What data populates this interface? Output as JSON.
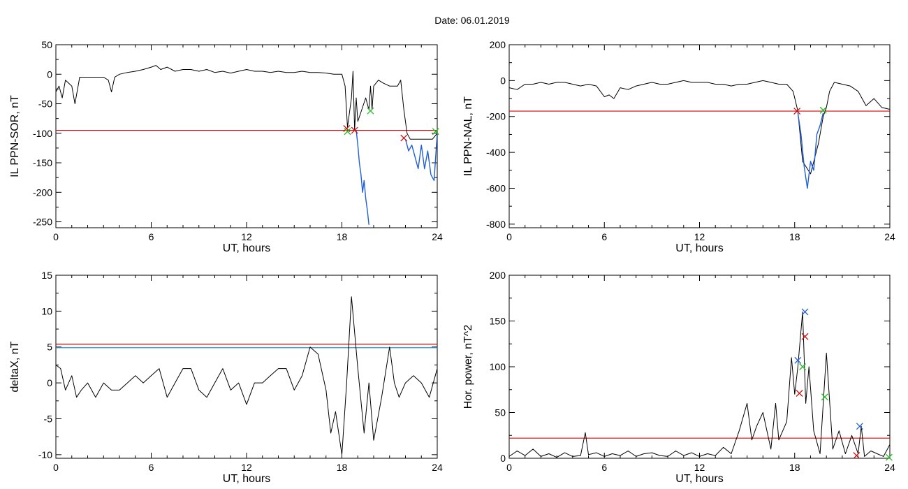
{
  "title": "Date:  06.01.2019",
  "colors": {
    "trace": "#000000",
    "threshold": "#e00000",
    "segment": "#1f5fd6",
    "cross_red": "#cc1111",
    "cross_green": "#22bb22",
    "cross_blue": "#1f5fd6",
    "threshold2": "#1f8fd6"
  },
  "chart_data": [
    {
      "id": "sor",
      "type": "line",
      "xlabel": "UT, hours",
      "ylabel": "IL PPN-SOR, nT",
      "xlim": [
        0,
        24
      ],
      "ylim": [
        -260,
        50
      ],
      "xticks": [
        0,
        6,
        12,
        18,
        24
      ],
      "yticks": [
        50,
        0,
        -50,
        -100,
        -150,
        -200,
        -250
      ],
      "xticklabels": [
        "0",
        "6",
        "12",
        "18",
        "24"
      ],
      "yticklabels": [
        "50",
        "0",
        "-50",
        "-100",
        "-150",
        "-200",
        "-250"
      ],
      "threshold": -95,
      "series": [
        {
          "style": "trace",
          "x": [
            0,
            0.2,
            0.4,
            0.6,
            1.0,
            1.2,
            1.5,
            2,
            2.5,
            3,
            3.3,
            3.5,
            3.7,
            4,
            4.5,
            5,
            5.5,
            6,
            6.3,
            6.6,
            7,
            7.5,
            8,
            8.5,
            9,
            9.5,
            10,
            10.5,
            11,
            11.5,
            12,
            12.5,
            13,
            13.5,
            14,
            14.5,
            15,
            15.5,
            16,
            16.5,
            17,
            17.5,
            18,
            18.2,
            18.35,
            18.5,
            18.6,
            18.7,
            18.8,
            18.9,
            19.0,
            19.5,
            19.7,
            19.8,
            19.9,
            20.0,
            20.3,
            20.6,
            21,
            21.5,
            21.7,
            21.9,
            22.0,
            22.1,
            22.3,
            22.6,
            23,
            23.4,
            23.7,
            24
          ],
          "y": [
            -30,
            -20,
            -40,
            -10,
            -20,
            -50,
            -5,
            -5,
            -5,
            -5,
            -10,
            -30,
            -5,
            0,
            3,
            5,
            8,
            12,
            15,
            8,
            12,
            5,
            8,
            8,
            5,
            8,
            3,
            5,
            2,
            5,
            8,
            5,
            5,
            3,
            5,
            3,
            3,
            5,
            3,
            3,
            2,
            0,
            0,
            -20,
            -90,
            -60,
            -40,
            5,
            -95,
            -40,
            -80,
            -40,
            -60,
            -20,
            -60,
            -20,
            -10,
            -15,
            -20,
            -20,
            -10,
            -60,
            -80,
            -100,
            -110,
            -110,
            -110,
            -110,
            -110,
            -100
          ]
        },
        {
          "style": "segment",
          "x": [
            18.9,
            19.0,
            19.1,
            19.2,
            19.3,
            19.4,
            19.5,
            19.6,
            19.7
          ],
          "y": [
            -95,
            -120,
            -150,
            -170,
            -200,
            -180,
            -210,
            -230,
            -255
          ]
        },
        {
          "style": "segment",
          "x": [
            22.0,
            22.2,
            22.4,
            22.6,
            22.8,
            23.0,
            23.2,
            23.4,
            23.6,
            23.8,
            24
          ],
          "y": [
            -110,
            -130,
            -120,
            -140,
            -160,
            -120,
            -160,
            -130,
            -170,
            -180,
            -100
          ]
        }
      ],
      "markers": [
        {
          "x": 18.3,
          "y": -92,
          "color": "red"
        },
        {
          "x": 18.35,
          "y": -97,
          "color": "green"
        },
        {
          "x": 18.8,
          "y": -95,
          "color": "red"
        },
        {
          "x": 19.8,
          "y": -62,
          "color": "green"
        },
        {
          "x": 21.9,
          "y": -108,
          "color": "red"
        },
        {
          "x": 23.9,
          "y": -97,
          "color": "green"
        }
      ]
    },
    {
      "id": "nal",
      "type": "line",
      "xlabel": "UT, hours",
      "ylabel": "IL PPN-NAL, nT",
      "xlim": [
        0,
        24
      ],
      "ylim": [
        -820,
        200
      ],
      "xticks": [
        0,
        6,
        12,
        18,
        24
      ],
      "yticks": [
        200,
        0,
        -200,
        -400,
        -600,
        -800
      ],
      "xticklabels": [
        "0",
        "6",
        "12",
        "18",
        "24"
      ],
      "yticklabels": [
        "200",
        "0",
        "-200",
        "-400",
        "-600",
        "-800"
      ],
      "threshold": -170,
      "series": [
        {
          "style": "trace",
          "x": [
            0,
            0.5,
            1,
            1.5,
            2,
            2.5,
            3,
            3.5,
            4,
            4.5,
            5,
            5.5,
            6,
            6.3,
            6.6,
            7,
            7.5,
            8,
            8.5,
            9,
            9.5,
            10,
            10.5,
            11,
            11.5,
            12,
            12.5,
            13,
            13.5,
            14,
            14.5,
            15,
            15.5,
            16,
            16.5,
            17,
            17.5,
            17.9,
            18.2,
            18.5,
            19,
            19.5,
            19.8,
            20.0,
            20.2,
            20.5,
            21,
            21.5,
            22,
            22.5,
            23,
            23.5,
            24
          ],
          "y": [
            -40,
            -50,
            -20,
            -20,
            -10,
            -20,
            -10,
            -10,
            -20,
            -30,
            -20,
            -30,
            -90,
            -80,
            -100,
            -40,
            -50,
            -30,
            -20,
            -10,
            -20,
            -20,
            -10,
            0,
            -10,
            -10,
            -10,
            -20,
            -20,
            -30,
            -20,
            -20,
            -10,
            0,
            -10,
            -20,
            -20,
            -60,
            -170,
            -450,
            -520,
            -350,
            -200,
            -150,
            -60,
            -10,
            -20,
            -30,
            -60,
            -140,
            -100,
            -150,
            -160
          ]
        },
        {
          "style": "segment",
          "x": [
            18.2,
            18.4,
            18.6,
            18.8,
            19.0,
            19.2,
            19.4,
            19.6,
            19.8
          ],
          "y": [
            -180,
            -300,
            -480,
            -600,
            -450,
            -500,
            -300,
            -250,
            -180
          ]
        }
      ],
      "markers": [
        {
          "x": 18.15,
          "y": -170,
          "color": "red"
        },
        {
          "x": 19.8,
          "y": -165,
          "color": "green"
        }
      ]
    },
    {
      "id": "deltax",
      "type": "line",
      "xlabel": "UT, hours",
      "ylabel": "deltaX, nT",
      "xlim": [
        0,
        24
      ],
      "ylim": [
        -10.5,
        15
      ],
      "xticks": [
        0,
        6,
        12,
        18,
        24
      ],
      "yticks": [
        15,
        10,
        5,
        0,
        -5,
        -10
      ],
      "xticklabels": [
        "0",
        "6",
        "12",
        "18",
        "24"
      ],
      "yticklabels": [
        "15",
        "10",
        "5",
        "0",
        "-5",
        "-10"
      ],
      "threshold": 5.4,
      "threshold2": 4.9,
      "series": [
        {
          "style": "trace",
          "x": [
            0,
            0.3,
            0.6,
            1.0,
            1.3,
            1.6,
            2,
            2.5,
            3,
            3.5,
            4,
            4.5,
            5,
            5.5,
            6,
            6.5,
            7,
            7.5,
            8,
            8.5,
            9,
            9.5,
            10,
            10.5,
            11,
            11.5,
            12,
            12.5,
            13,
            13.5,
            14,
            14.5,
            15,
            15.5,
            16,
            16.5,
            17,
            17.3,
            17.6,
            18.0,
            18.3,
            18.6,
            19.0,
            19.4,
            19.7,
            20,
            20.5,
            21,
            21.3,
            21.6,
            22,
            22.5,
            23,
            23.5,
            24
          ],
          "y": [
            2.5,
            2,
            -1,
            1,
            -2,
            -1,
            0,
            -2,
            0,
            -1,
            -1,
            0,
            1,
            0,
            1,
            2,
            -2,
            0,
            2,
            2,
            -1,
            -2,
            0,
            2,
            -1,
            0,
            -3,
            0,
            0,
            1,
            2,
            2,
            -1,
            1,
            5,
            4,
            -1,
            -7,
            -4,
            -10,
            0,
            12,
            2,
            -7,
            0,
            -8,
            -2,
            5,
            0,
            -2,
            0,
            1,
            0,
            -2,
            2
          ]
        }
      ],
      "markers": []
    },
    {
      "id": "power",
      "type": "line",
      "xlabel": "UT, hours",
      "ylabel": "Hor. power, nT^2",
      "xlim": [
        0,
        24
      ],
      "ylim": [
        0,
        200
      ],
      "xticks": [
        0,
        6,
        12,
        18,
        24
      ],
      "yticks": [
        200,
        150,
        100,
        50,
        0
      ],
      "xticklabels": [
        "0",
        "6",
        "12",
        "18",
        "24"
      ],
      "yticklabels": [
        "200",
        "150",
        "100",
        "50",
        "0"
      ],
      "threshold": 22,
      "series": [
        {
          "style": "trace",
          "x": [
            0,
            0.5,
            1,
            1.5,
            2,
            2.5,
            3,
            3.5,
            4,
            4.5,
            4.8,
            5.0,
            5.5,
            6,
            6.5,
            7,
            7.5,
            8,
            8.5,
            9,
            9.5,
            10,
            10.5,
            11,
            11.5,
            12,
            12.5,
            13,
            13.5,
            14,
            14.5,
            15,
            15.3,
            15.6,
            16,
            16.5,
            16.8,
            17,
            17.5,
            17.8,
            18,
            18.2,
            18.5,
            18.7,
            18.9,
            19.2,
            19.6,
            20,
            20.4,
            20.8,
            21.2,
            21.6,
            22,
            22.2,
            22.4,
            22.8,
            23.2,
            23.6,
            24
          ],
          "y": [
            2,
            8,
            3,
            10,
            2,
            5,
            1,
            6,
            2,
            3,
            28,
            4,
            6,
            2,
            5,
            3,
            8,
            2,
            5,
            6,
            3,
            2,
            8,
            3,
            6,
            2,
            5,
            3,
            12,
            5,
            30,
            60,
            20,
            35,
            50,
            10,
            60,
            20,
            40,
            110,
            70,
            100,
            160,
            60,
            100,
            30,
            5,
            115,
            10,
            30,
            5,
            25,
            5,
            35,
            2,
            8,
            5,
            2,
            15
          ]
        }
      ],
      "markers": [
        {
          "x": 18.2,
          "y": 107,
          "color": "blue"
        },
        {
          "x": 18.3,
          "y": 71,
          "color": "red"
        },
        {
          "x": 18.5,
          "y": 100,
          "color": "green"
        },
        {
          "x": 18.65,
          "y": 160,
          "color": "blue"
        },
        {
          "x": 18.65,
          "y": 133,
          "color": "red"
        },
        {
          "x": 19.9,
          "y": 67,
          "color": "green"
        },
        {
          "x": 22.1,
          "y": 35,
          "color": "blue"
        },
        {
          "x": 21.9,
          "y": 3,
          "color": "red"
        },
        {
          "x": 23.95,
          "y": 1,
          "color": "green"
        }
      ]
    }
  ]
}
